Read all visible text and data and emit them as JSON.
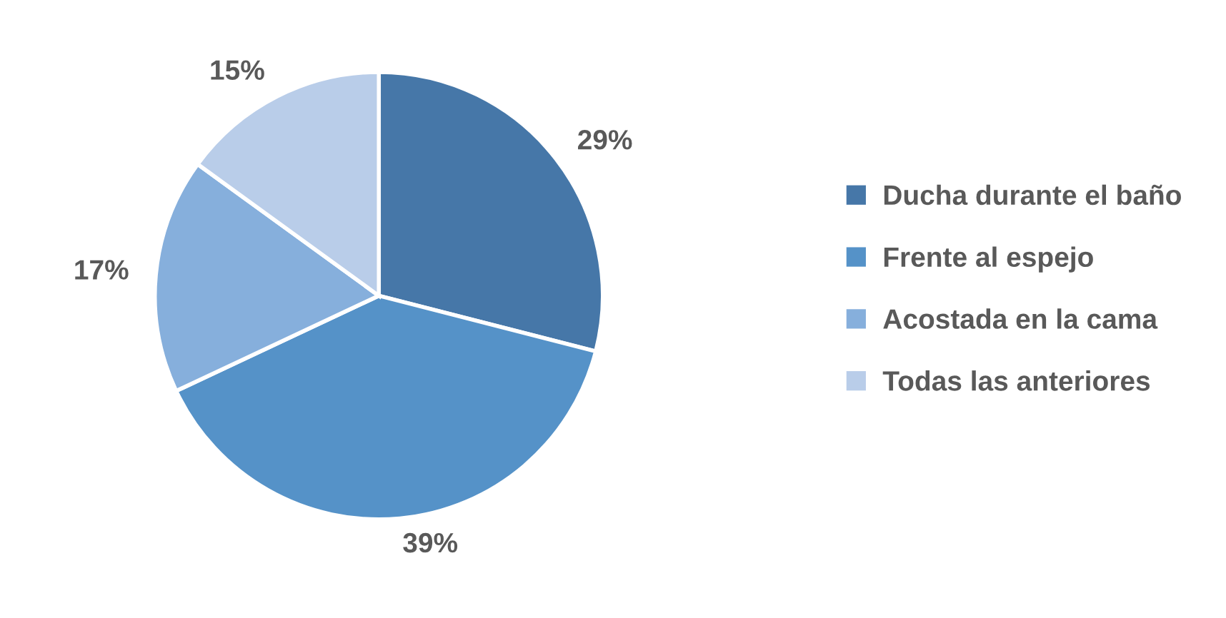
{
  "chart_data": {
    "type": "pie",
    "categories": [
      "Ducha durante el baño",
      "Frente al espejo",
      "Acostada en la cama",
      "Todas las anteriores"
    ],
    "values": [
      29,
      39,
      17,
      15
    ],
    "colors": [
      "#4677a8",
      "#5592c8",
      "#86afdc",
      "#b9cde9"
    ],
    "value_labels": [
      "29%",
      "39%",
      "17%",
      "15%"
    ],
    "legend": "right"
  }
}
